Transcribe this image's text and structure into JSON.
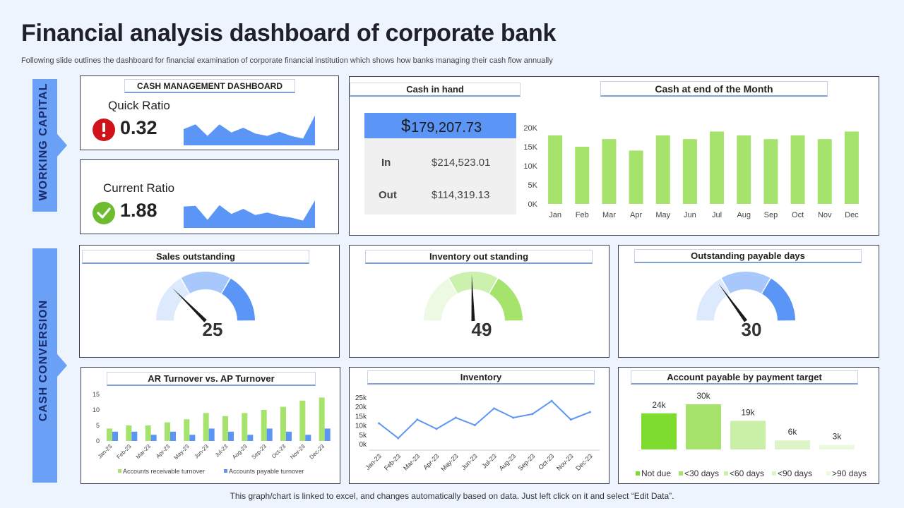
{
  "header": {
    "title": "Financial analysis dashboard of corporate bank",
    "subtitle": "Following slide outlines the dashboard for financial examination of corporate financial institution which shows how banks managing their cash flow annually"
  },
  "footer": "This graph/chart is linked to excel,  and changes automatically based on data. Just left click on it and select “Edit Data”.",
  "sections": {
    "working_capital": "WORKING CAPITAL",
    "cash_conversion": "CASH CONVERSION"
  },
  "cash_management": {
    "title": "CASH MANAGEMENT DASHBOARD",
    "quick_ratio": {
      "label": "Quick Ratio",
      "value": "0.32",
      "status": "alert"
    },
    "current_ratio": {
      "label": "Current Ratio",
      "value": "1.88",
      "status": "ok"
    }
  },
  "cash_in_hand": {
    "title": "Cash in hand",
    "symbol": "$",
    "total": "179,207.73",
    "in_label": "In",
    "in_value": "$214,523.01",
    "out_label": "Out",
    "out_value": "$114,319.13"
  },
  "gauges": {
    "sales": {
      "title": "Sales outstanding",
      "value": "25"
    },
    "inventory": {
      "title": "Inventory out standing",
      "value": "49"
    },
    "payable": {
      "title": "Outstanding payable days",
      "value": "30"
    }
  },
  "chart_titles": {
    "cash_month": "Cash at end of the Month",
    "ar_ap": "AR Turnover vs. AP Turnover",
    "inventory": "Inventory",
    "payable_target": "Account payable by payment target"
  },
  "colors": {
    "blue": "#5b95f5",
    "green": "#a6e36d",
    "dark_green": "#7ddc2e",
    "red": "#d0121b",
    "check_green": "#6dbb2e"
  },
  "chart_data": [
    {
      "id": "cash_month",
      "type": "bar",
      "title": "Cash at end of the Month",
      "categories": [
        "Jan",
        "Feb",
        "Mar",
        "Apr",
        "May",
        "Jun",
        "Jul",
        "Aug",
        "Sep",
        "Oct",
        "Nov",
        "Dec"
      ],
      "values": [
        18000,
        15000,
        17000,
        14000,
        18000,
        17000,
        19000,
        18000,
        17000,
        18000,
        17000,
        19000
      ],
      "yticks": [
        "0K",
        "5K",
        "10K",
        "15K",
        "20K"
      ],
      "ylim": [
        0,
        20000
      ]
    },
    {
      "id": "ar_ap",
      "type": "bar",
      "title": "AR Turnover vs. AP Turnover",
      "categories": [
        "Jan-23",
        "Feb-23",
        "Mar-23",
        "Apr-23",
        "May-23",
        "Jun-23",
        "Jul-23",
        "Aug-23",
        "Sep-23",
        "Oct-23",
        "Nov-23",
        "Dec-23"
      ],
      "series": [
        {
          "name": "Accounts receivable turnover",
          "values": [
            4,
            5,
            5,
            6,
            7,
            9,
            8,
            9,
            10,
            11,
            13,
            14
          ]
        },
        {
          "name": "Accounts payable turnover",
          "values": [
            3,
            3,
            2,
            3,
            2,
            4,
            3,
            2,
            4,
            3,
            2,
            4
          ]
        }
      ],
      "yticks": [
        "0",
        "5",
        "10",
        "15"
      ],
      "ylim": [
        0,
        15
      ]
    },
    {
      "id": "inventory",
      "type": "line",
      "title": "Inventory",
      "categories": [
        "Jan-23",
        "Feb-23",
        "Mar-23",
        "Apr-23",
        "May-23",
        "Jun-23",
        "Jul-23",
        "Aug-23",
        "Sep-23",
        "Oct-23",
        "Nov-23",
        "Dec-23"
      ],
      "values": [
        11000,
        3000,
        13000,
        8000,
        14000,
        10000,
        19000,
        14000,
        16000,
        23000,
        13000,
        17000
      ],
      "yticks": [
        "0k",
        "5k",
        "10k",
        "15k",
        "20k",
        "25k"
      ],
      "ylim": [
        0,
        25000
      ]
    },
    {
      "id": "payable_target",
      "type": "bar",
      "title": "Account payable by payment target",
      "categories": [
        "Not due",
        "<30 days",
        "<60 days",
        "<90 days",
        ">90 days"
      ],
      "values": [
        24,
        30,
        19,
        6,
        3
      ],
      "labels": [
        "24k",
        "30k",
        "19k",
        "6k",
        "3k"
      ],
      "colors": [
        "#7ddc2e",
        "#a6e36d",
        "#c9f0a6",
        "#ddf5c6",
        "#ebf9dd"
      ],
      "ylim": [
        0,
        30
      ]
    },
    {
      "id": "quick_ratio_area",
      "type": "area",
      "values": [
        0.48,
        0.62,
        0.28,
        0.62,
        0.38,
        0.52,
        0.35,
        0.28,
        0.4,
        0.28,
        0.2,
        0.88
      ]
    },
    {
      "id": "current_ratio_area",
      "type": "area",
      "values": [
        0.58,
        0.6,
        0.22,
        0.62,
        0.38,
        0.52,
        0.35,
        0.42,
        0.33,
        0.28,
        0.2,
        0.75
      ]
    },
    {
      "id": "gauge_sales",
      "type": "gauge",
      "value": 25,
      "max": 100,
      "segments": 3,
      "palette": [
        "#dde9fc",
        "#a8c7fa",
        "#5b95f5"
      ]
    },
    {
      "id": "gauge_inventory",
      "type": "gauge",
      "value": 49,
      "max": 100,
      "segments": 3,
      "palette": [
        "#eef9e3",
        "#ccf0ae",
        "#a6e36d"
      ]
    },
    {
      "id": "gauge_payable",
      "type": "gauge",
      "value": 30,
      "max": 100,
      "segments": 3,
      "palette": [
        "#dde9fc",
        "#a8c7fa",
        "#5b95f5"
      ]
    }
  ]
}
